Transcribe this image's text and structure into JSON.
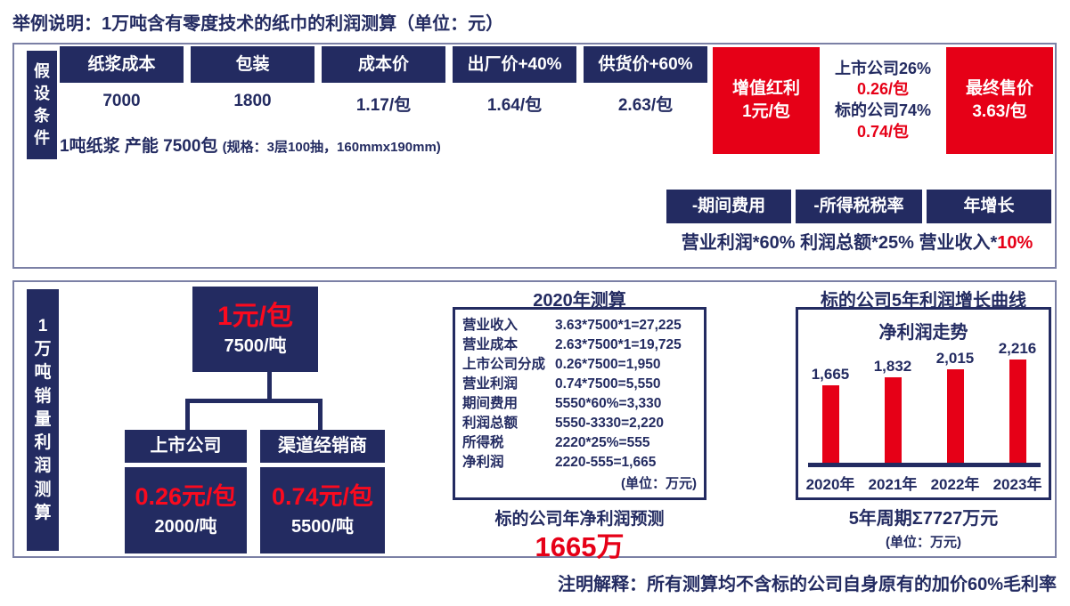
{
  "title": "举例说明：1万吨含有零度技术的纸巾的利润测算（单位：元）",
  "colors": {
    "navy": "#232b61",
    "red": "#e60017",
    "bar_red": "#e60017"
  },
  "assumptions": {
    "side_label": "假设条件",
    "chain": [
      {
        "label": "纸浆成本",
        "value": "7000"
      },
      {
        "label": "包装",
        "value": "1800"
      },
      {
        "label": "成本价",
        "value": "1.17/包"
      },
      {
        "label": "出厂价+40%",
        "value": "1.64/包"
      },
      {
        "label": "供货价+60%",
        "value": "2.63/包"
      }
    ],
    "capacity_main": "1吨纸浆 产能 7500包 ",
    "capacity_spec": "(规格：3层100抽，160mmx190mm)",
    "bonus": {
      "left_lines": [
        "增值红利",
        "1元/包"
      ],
      "split_lines": [
        {
          "text": "上市公司26%",
          "color": "navy"
        },
        {
          "text": "0.26/包",
          "color": "red"
        },
        {
          "text": "标的公司74%",
          "color": "navy"
        },
        {
          "text": "0.74/包",
          "color": "red"
        }
      ],
      "right_lines": [
        "最终售价",
        "3.63/包"
      ]
    },
    "deduction_boxes": [
      "-期间费用",
      "-所得税税率",
      "年增长"
    ],
    "deduction_formulas": [
      {
        "text": "营业利润*60% ",
        "highlight": ""
      },
      {
        "text": "利润总额*25% ",
        "highlight": ""
      },
      {
        "text": "营业收入*",
        "highlight": "10%"
      }
    ]
  },
  "profit_model": {
    "side_label": "1万吨销量利润测算",
    "tree": {
      "root": {
        "price": "1元/包",
        "volume": "7500/吨"
      },
      "children": [
        {
          "name": "上市公司",
          "price": "0.26元/包",
          "volume": "2000/吨"
        },
        {
          "name": "渠道经销商",
          "price": "0.74元/包",
          "volume": "5500/吨"
        }
      ]
    },
    "calc2020": {
      "title": "2020年测算",
      "rows": [
        {
          "label": "营业收入",
          "formula": "3.63*7500*1=27,225"
        },
        {
          "label": "营业成本",
          "formula": "2.63*7500*1=19,725"
        },
        {
          "label": "上市公司分成",
          "formula": "0.26*7500=1,950"
        },
        {
          "label": "营业利润",
          "formula": "0.74*7500=5,550"
        },
        {
          "label": "期间费用",
          "formula": "5550*60%=3,330"
        },
        {
          "label": "利润总额",
          "formula": "5550-3330=2,220"
        },
        {
          "label": "所得税",
          "formula": "2220*25%=555"
        },
        {
          "label": "净利润",
          "formula": "2220-555=1,665"
        }
      ],
      "unit": "(单位：万元)",
      "prediction_label": "标的公司年净利润预测",
      "prediction_value": "1665万"
    },
    "growth_title": "标的公司5年利润增长曲线",
    "growth_sum": "5年周期Σ7727万元",
    "growth_unit": "(单位：万元)"
  },
  "chart_data": {
    "type": "bar",
    "title": "净利润走势",
    "categories": [
      "2020年",
      "2021年",
      "2022年",
      "2023年"
    ],
    "values": [
      1665,
      1832,
      2015,
      2216
    ],
    "value_labels": [
      "1,665",
      "1,832",
      "2,015",
      "2,216"
    ],
    "ylabel": "净利润",
    "unit": "万元",
    "ylim": [
      0,
      2216
    ],
    "bar_color": "#e60017",
    "grid": false,
    "legend": false
  },
  "footer": "注明解释：所有测算均不含标的公司自身原有的加价60%毛利率"
}
